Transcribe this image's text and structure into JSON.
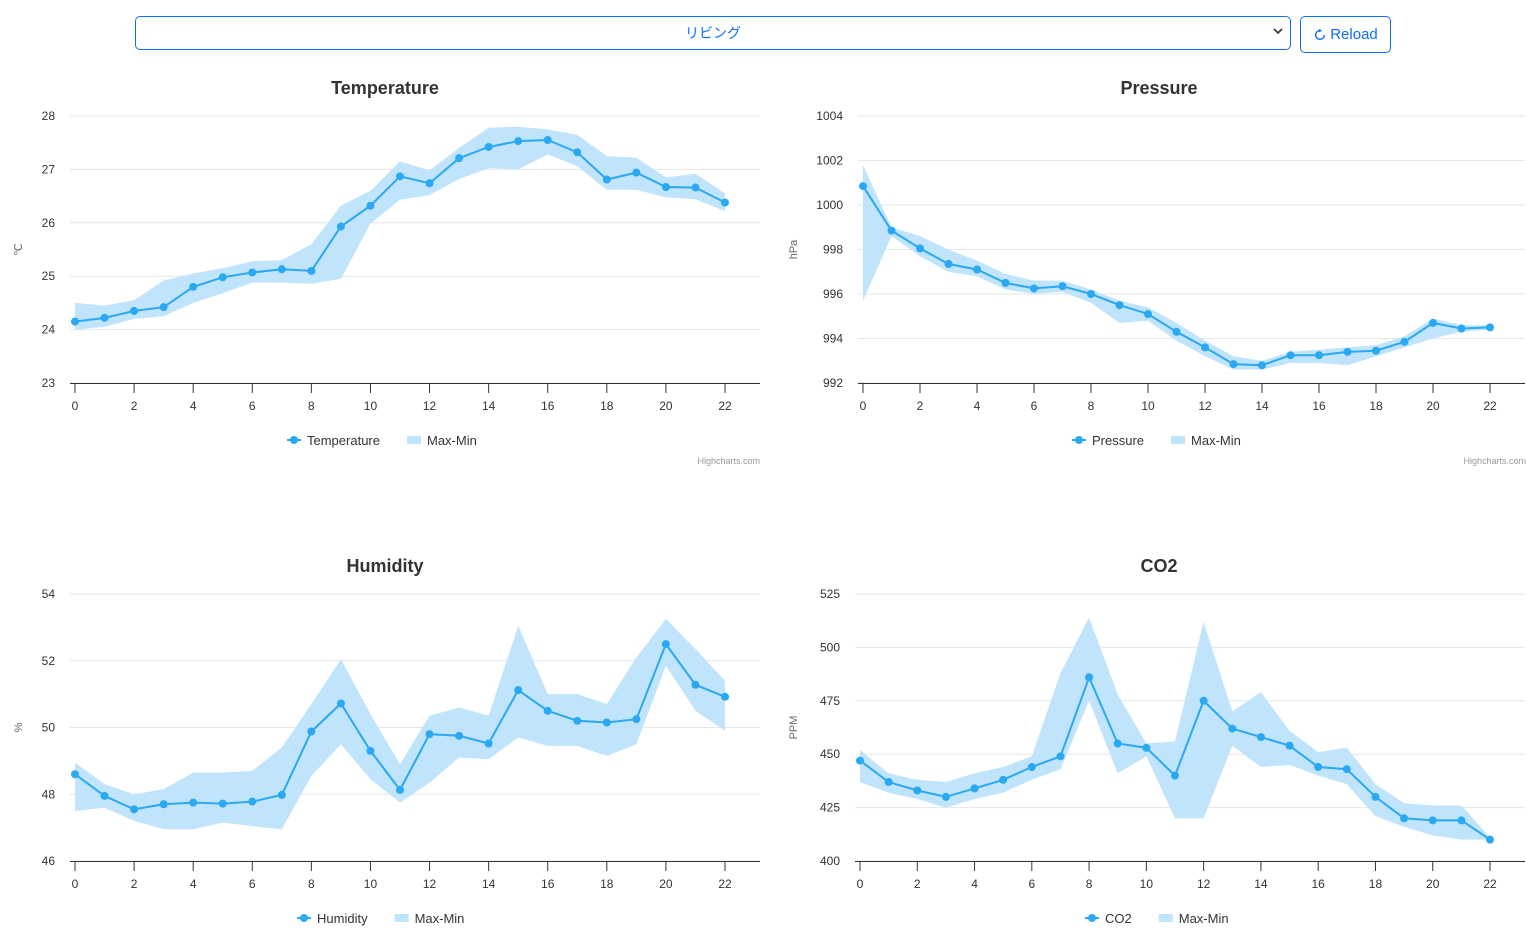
{
  "controls": {
    "room_select": {
      "value": "リビング"
    },
    "reload_label": "Reload"
  },
  "colors": {
    "accent": "#0d6efd",
    "series": "#2aa8f2",
    "band": "#bfe4fb",
    "grid": "#e6e6e6",
    "axis": "#333333"
  },
  "credits": "Highcharts.com",
  "chart_data": [
    {
      "id": "temperature",
      "type": "line",
      "title": "Temperature",
      "ylabel": "℃",
      "ylim": [
        23,
        28
      ],
      "yticks": [
        23,
        24,
        25,
        26,
        27,
        28
      ],
      "xticks": [
        0,
        2,
        4,
        6,
        8,
        10,
        12,
        14,
        16,
        18,
        20,
        22
      ],
      "x": [
        0,
        1,
        2,
        3,
        4,
        5,
        6,
        7,
        8,
        9,
        10,
        11,
        12,
        13,
        14,
        15,
        16,
        17,
        18,
        19,
        20,
        21,
        22
      ],
      "series": [
        {
          "name": "Temperature",
          "values": [
            24.15,
            24.22,
            24.35,
            24.42,
            24.8,
            24.98,
            25.07,
            25.13,
            25.1,
            25.93,
            26.32,
            26.87,
            26.74,
            27.21,
            27.42,
            27.53,
            27.55,
            27.32,
            26.81,
            26.94,
            26.67,
            26.66,
            26.38
          ]
        }
      ],
      "band": {
        "name": "Max-Min",
        "high": [
          24.5,
          24.45,
          24.55,
          24.92,
          25.05,
          25.15,
          25.28,
          25.3,
          25.6,
          26.32,
          26.6,
          27.15,
          26.98,
          27.4,
          27.78,
          27.8,
          27.75,
          27.65,
          27.25,
          27.22,
          26.85,
          26.92,
          26.55
        ],
        "low": [
          24.0,
          24.05,
          24.2,
          24.25,
          24.5,
          24.68,
          24.88,
          24.88,
          24.86,
          24.95,
          25.99,
          26.43,
          26.52,
          26.82,
          27.02,
          27.0,
          27.28,
          27.06,
          26.62,
          26.62,
          26.48,
          26.44,
          26.22
        ]
      }
    },
    {
      "id": "pressure",
      "type": "line",
      "title": "Pressure",
      "ylabel": "hPa",
      "ylim": [
        992,
        1004
      ],
      "yticks": [
        992,
        994,
        996,
        998,
        1000,
        1002,
        1004
      ],
      "xticks": [
        0,
        2,
        4,
        6,
        8,
        10,
        12,
        14,
        16,
        18,
        20,
        22
      ],
      "x": [
        0,
        1,
        2,
        3,
        4,
        5,
        6,
        7,
        8,
        9,
        10,
        11,
        12,
        13,
        14,
        15,
        16,
        17,
        18,
        19,
        20,
        21,
        22
      ],
      "series": [
        {
          "name": "Pressure",
          "values": [
            1000.85,
            998.85,
            998.05,
            997.35,
            997.1,
            996.5,
            996.25,
            996.35,
            996.0,
            995.5,
            995.1,
            994.3,
            993.6,
            992.85,
            992.8,
            993.25,
            993.25,
            993.4,
            993.45,
            993.85,
            994.7,
            994.45,
            994.5
          ]
        }
      ],
      "band": {
        "name": "Max-Min",
        "high": [
          1001.8,
          999.0,
          998.6,
          998.0,
          997.5,
          996.9,
          996.6,
          996.6,
          996.2,
          995.7,
          995.4,
          994.7,
          993.9,
          993.2,
          993.0,
          993.4,
          993.5,
          993.6,
          993.7,
          994.1,
          994.9,
          994.6,
          994.6
        ],
        "low": [
          995.7,
          998.6,
          997.7,
          997.0,
          996.8,
          996.2,
          996.0,
          996.1,
          995.6,
          994.7,
          994.8,
          993.9,
          993.2,
          992.6,
          992.6,
          992.9,
          992.9,
          992.8,
          993.2,
          993.6,
          994.0,
          994.3,
          994.4
        ]
      }
    },
    {
      "id": "humidity",
      "type": "line",
      "title": "Humidity",
      "ylabel": "%",
      "ylim": [
        46,
        54
      ],
      "yticks": [
        46,
        48,
        50,
        52,
        54
      ],
      "xticks": [
        0,
        2,
        4,
        6,
        8,
        10,
        12,
        14,
        16,
        18,
        20,
        22
      ],
      "x": [
        0,
        1,
        2,
        3,
        4,
        5,
        6,
        7,
        8,
        9,
        10,
        11,
        12,
        13,
        14,
        15,
        16,
        17,
        18,
        19,
        20,
        21,
        22
      ],
      "series": [
        {
          "name": "Humidity",
          "values": [
            48.6,
            47.95,
            47.55,
            47.7,
            47.75,
            47.72,
            47.78,
            47.98,
            49.88,
            50.72,
            49.3,
            48.13,
            49.8,
            49.75,
            49.52,
            51.12,
            50.5,
            50.2,
            50.15,
            50.25,
            52.5,
            51.28,
            50.92
          ]
        }
      ],
      "band": {
        "name": "Max-Min",
        "high": [
          48.95,
          48.3,
          48.0,
          48.15,
          48.65,
          48.65,
          48.7,
          49.4,
          50.7,
          52.05,
          50.4,
          48.9,
          50.35,
          50.6,
          50.35,
          53.05,
          51.0,
          51.0,
          50.7,
          52.1,
          53.25,
          52.35,
          51.4
        ],
        "low": [
          47.5,
          47.6,
          47.2,
          46.95,
          46.95,
          47.15,
          47.05,
          46.95,
          48.55,
          49.5,
          48.45,
          47.75,
          48.35,
          49.1,
          49.05,
          49.7,
          49.45,
          49.45,
          49.15,
          49.5,
          51.85,
          50.5,
          49.9
        ]
      }
    },
    {
      "id": "co2",
      "type": "line",
      "title": "CO2",
      "ylabel": "PPM",
      "ylim": [
        400,
        525
      ],
      "yticks": [
        400,
        425,
        450,
        475,
        500,
        525
      ],
      "xticks": [
        0,
        2,
        4,
        6,
        8,
        10,
        12,
        14,
        16,
        18,
        20,
        22
      ],
      "x": [
        0,
        1,
        2,
        3,
        4,
        5,
        6,
        7,
        8,
        9,
        10,
        11,
        12,
        13,
        14,
        15,
        16,
        17,
        18,
        19,
        20,
        21,
        22
      ],
      "series": [
        {
          "name": "CO2",
          "values": [
            447,
            437,
            433,
            430,
            434,
            438,
            444,
            449,
            486,
            455,
            453,
            440,
            475,
            462,
            458,
            454,
            444,
            443,
            430,
            420,
            419,
            419,
            410
          ]
        }
      ],
      "band": {
        "name": "Max-Min",
        "high": [
          452,
          441,
          438,
          437,
          441,
          444,
          449,
          488,
          514,
          478,
          455,
          456,
          512,
          470,
          479,
          461,
          451,
          453,
          436,
          427,
          426,
          426,
          411
        ],
        "low": [
          437,
          432,
          429,
          425,
          429,
          432,
          438,
          443,
          475,
          441,
          449,
          420,
          420,
          454,
          444,
          445,
          440,
          436,
          421,
          416,
          412,
          410,
          410
        ]
      }
    }
  ]
}
